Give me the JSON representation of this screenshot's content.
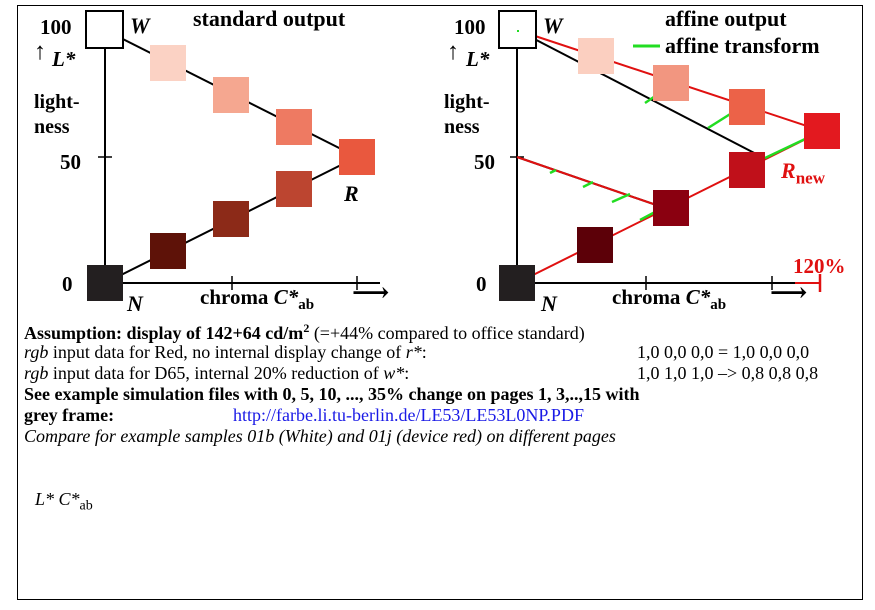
{
  "left_panel": {
    "title": "standard output",
    "y_tick_100": "100",
    "y_tick_50": "50",
    "y_tick_0": "0",
    "axis_arrow": "↑",
    "axis_symbol": "L*",
    "axis_label_line1": "light-",
    "axis_label_line2": "ness",
    "white_label": "W",
    "black_label": "N",
    "red_label": "R",
    "x_label_main": "chroma ",
    "x_label_sym": "C*",
    "x_label_sub": "ab",
    "x_arrow": "⟶",
    "upper_colors": [
      "#fbd2c4",
      "#f5a790",
      "#ee7a62",
      "#e9583e"
    ],
    "lower_colors": [
      "#5e1208",
      "#8c2a18",
      "#bc4530"
    ]
  },
  "right_panel": {
    "title": "affine output",
    "legend_text": "affine transform",
    "legend_color": "#22dd22",
    "y_tick_100": "100",
    "y_tick_50": "50",
    "y_tick_0": "0",
    "axis_arrow": "↑",
    "axis_symbol": "L*",
    "axis_label_line1": "light-",
    "axis_label_line2": "ness",
    "white_label": "W",
    "black_label": "N",
    "red_label_main": "R",
    "red_label_sub": "new",
    "percent_label": "120%",
    "x_label_main": "chroma ",
    "x_label_sym": "C*",
    "x_label_sub": "ab",
    "x_arrow": "⟶",
    "upper_colors": [
      "#fbcfc0",
      "#f29680",
      "#ec6248",
      "#e3191f"
    ],
    "lower_colors": [
      "#5c0008",
      "#8a0010",
      "#c0101a"
    ],
    "line_red": "#e01010"
  },
  "text": {
    "assumption_bold": "Assumption: display of 142+64 cd/m",
    "assumption_sup": "2",
    "assumption_rest": " (=+44% compared to office standard)",
    "line2_it": "rgb",
    "line2_mid": " input data for Red, no internal display change of ",
    "line2_sym": "r*",
    "line2_end": ":",
    "line2_values": "1,0 0,0 0,0  = 1,0 0,0 0,0",
    "line3_it": "rgb",
    "line3_mid": " input data for D65, internal 20% reduction of ",
    "line3_sym": "w*",
    "line3_end": ":",
    "line3_values": "1,0 1,0 1,0 –> 0,8 0,8 0,8",
    "line4": "See example simulation files with 0, 5, 10, ..., 35% change on pages 1, 3,..,15 with",
    "line5_bold": "grey frame:",
    "line5_link": "http://farbe.li.tu-berlin.de/LE53/LE53L0NP.PDF",
    "line6": "Compare for example samples 01b (White) and 01j (device red) on different pages",
    "footer_sym": "L* C*",
    "footer_sub": "ab"
  }
}
